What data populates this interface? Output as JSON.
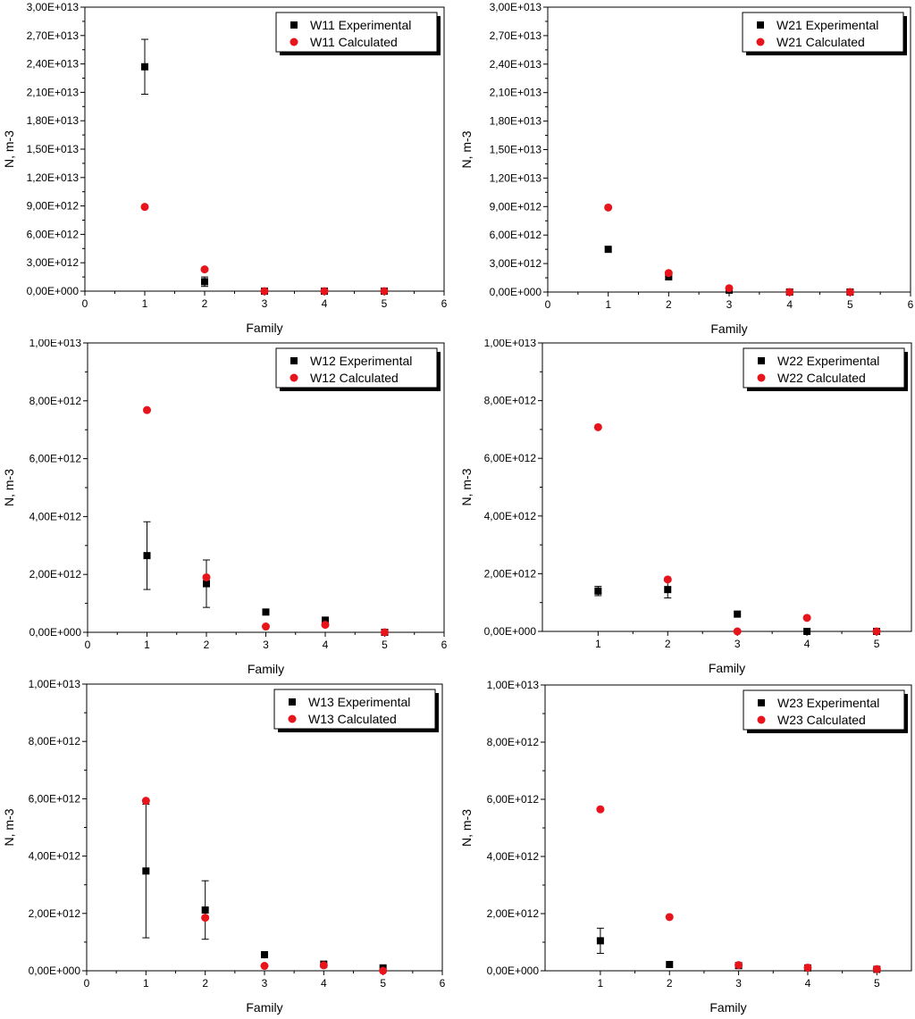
{
  "figure": {
    "description_color_experimental": "#000000",
    "description_color_calculated": "#e8141b"
  },
  "chart_data": [
    {
      "type": "scatter",
      "title": "",
      "xlabel": "Family",
      "ylabel": "N, m-3",
      "xlim": [
        0,
        6
      ],
      "ylim": [
        0,
        30000000000000.0
      ],
      "xticks": [
        0,
        1,
        2,
        3,
        4,
        5,
        6
      ],
      "yticks": [
        0,
        3000000000000.0,
        6000000000000.0,
        9000000000000.0,
        12000000000000.0,
        15000000000000.0,
        18000000000000.0,
        21000000000000.0,
        24000000000000.0,
        27000000000000.0,
        30000000000000.0
      ],
      "ytick_labels": [
        "0,00E+000",
        "3,00E+012",
        "6,00E+012",
        "9,00E+012",
        "1,20E+013",
        "1,50E+013",
        "1,80E+013",
        "2,10E+013",
        "2,40E+013",
        "2,70E+013",
        "3,00E+013"
      ],
      "legend_position": "top-right",
      "series": [
        {
          "name": "W11 Experimental",
          "marker": "square",
          "color": "#000000",
          "x": [
            1,
            2,
            3,
            4,
            5
          ],
          "y": [
            23700000000000.0,
            1000000000000.0,
            0,
            0,
            0
          ],
          "err": [
            2900000000000.0,
            500000000000.0,
            0,
            0,
            0
          ]
        },
        {
          "name": "W11 Calculated",
          "marker": "circle",
          "color": "#e8141b",
          "x": [
            1,
            2,
            3,
            4,
            5
          ],
          "y": [
            8900000000000.0,
            2300000000000.0,
            0,
            0,
            0
          ]
        }
      ]
    },
    {
      "type": "scatter",
      "title": "",
      "xlabel": "Family",
      "ylabel": "N, m-3",
      "xlim": [
        0,
        6
      ],
      "ylim": [
        0,
        30000000000000.0
      ],
      "xticks": [
        0,
        1,
        2,
        3,
        4,
        5,
        6
      ],
      "yticks": [
        0,
        3000000000000.0,
        6000000000000.0,
        9000000000000.0,
        12000000000000.0,
        15000000000000.0,
        18000000000000.0,
        21000000000000.0,
        24000000000000.0,
        27000000000000.0,
        30000000000000.0
      ],
      "ytick_labels": [
        "0,00E+000",
        "3,00E+012",
        "6,00E+012",
        "9,00E+012",
        "1,20E+013",
        "1,50E+013",
        "1,80E+013",
        "2,10E+013",
        "2,40E+013",
        "2,70E+013",
        "3,00E+013"
      ],
      "legend_position": "top-right",
      "series": [
        {
          "name": "W21 Experimental",
          "marker": "square",
          "color": "#000000",
          "x": [
            1,
            2,
            3,
            4,
            5
          ],
          "y": [
            4500000000000.0,
            1600000000000.0,
            200000000000.0,
            0,
            0
          ],
          "err": [
            0,
            0,
            0,
            0,
            0
          ]
        },
        {
          "name": "W21 Calculated",
          "marker": "circle",
          "color": "#e8141b",
          "x": [
            1,
            2,
            3,
            4,
            5
          ],
          "y": [
            8900000000000.0,
            2000000000000.0,
            400000000000.0,
            0,
            0
          ]
        }
      ]
    },
    {
      "type": "scatter",
      "title": "",
      "xlabel": "Family",
      "ylabel": "N, m-3",
      "xlim": [
        0,
        6
      ],
      "ylim": [
        0,
        10000000000000.0
      ],
      "xticks": [
        0,
        1,
        2,
        3,
        4,
        5,
        6
      ],
      "yticks": [
        0,
        2000000000000.0,
        4000000000000.0,
        6000000000000.0,
        8000000000000.0,
        10000000000000.0
      ],
      "ytick_labels": [
        "0,00E+000",
        "2,00E+012",
        "4,00E+012",
        "6,00E+012",
        "8,00E+012",
        "1,00E+013"
      ],
      "legend_position": "top-right",
      "series": [
        {
          "name": "W12 Experimental",
          "marker": "square",
          "color": "#000000",
          "x": [
            1,
            2,
            3,
            4,
            5
          ],
          "y": [
            2650000000000.0,
            1680000000000.0,
            700000000000.0,
            420000000000.0,
            0
          ],
          "err": [
            1170000000000.0,
            820000000000.0,
            0,
            0,
            0
          ]
        },
        {
          "name": "W12 Calculated",
          "marker": "circle",
          "color": "#e8141b",
          "x": [
            1,
            2,
            3,
            4,
            5
          ],
          "y": [
            7680000000000.0,
            1900000000000.0,
            200000000000.0,
            260000000000.0,
            0
          ]
        }
      ]
    },
    {
      "type": "scatter",
      "title": "",
      "xlabel": "Family",
      "ylabel": "N, m-3",
      "xlim": [
        0.2,
        5.5
      ],
      "ylim": [
        0,
        10000000000000.0
      ],
      "xticks": [
        1,
        2,
        3,
        4,
        5
      ],
      "yticks": [
        0,
        2000000000000.0,
        4000000000000.0,
        6000000000000.0,
        8000000000000.0,
        10000000000000.0
      ],
      "ytick_labels": [
        "0,00E+000",
        "2,00E+012",
        "4,00E+012",
        "6,00E+012",
        "8,00E+012",
        "1,00E+013"
      ],
      "legend_position": "top-right",
      "series": [
        {
          "name": "W22 Experimental",
          "marker": "square",
          "color": "#000000",
          "x": [
            1,
            2,
            3,
            4,
            5
          ],
          "y": [
            1400000000000.0,
            1450000000000.0,
            600000000000.0,
            0,
            0
          ],
          "err": [
            160000000000.0,
            290000000000.0,
            0,
            0,
            0
          ]
        },
        {
          "name": "W22 Calculated",
          "marker": "circle",
          "color": "#e8141b",
          "x": [
            1,
            2,
            3,
            4,
            5
          ],
          "y": [
            7080000000000.0,
            1800000000000.0,
            0,
            470000000000.0,
            0
          ]
        }
      ]
    },
    {
      "type": "scatter",
      "title": "",
      "xlabel": "Family",
      "ylabel": "N, m-3",
      "xlim": [
        0,
        6
      ],
      "ylim": [
        0,
        10000000000000.0
      ],
      "xticks": [
        0,
        1,
        2,
        3,
        4,
        5,
        6
      ],
      "yticks": [
        0,
        2000000000000.0,
        4000000000000.0,
        6000000000000.0,
        8000000000000.0,
        10000000000000.0
      ],
      "ytick_labels": [
        "0,00E+000",
        "2,00E+012",
        "4,00E+012",
        "6,00E+012",
        "8,00E+012",
        "1,00E+013"
      ],
      "legend_position": "top-right",
      "series": [
        {
          "name": "W13 Experimental",
          "marker": "square",
          "color": "#000000",
          "x": [
            1,
            2,
            3,
            4,
            5
          ],
          "y": [
            3480000000000.0,
            2120000000000.0,
            560000000000.0,
            230000000000.0,
            100000000000.0
          ],
          "err": [
            2330000000000.0,
            1020000000000.0,
            0,
            0,
            0
          ]
        },
        {
          "name": "W13 Calculated",
          "marker": "circle",
          "color": "#e8141b",
          "x": [
            1,
            2,
            3,
            4,
            5
          ],
          "y": [
            5930000000000.0,
            1850000000000.0,
            170000000000.0,
            190000000000.0,
            0
          ]
        }
      ]
    },
    {
      "type": "scatter",
      "title": "",
      "xlabel": "Family",
      "ylabel": "N, m-3",
      "xlim": [
        0.2,
        5.5
      ],
      "ylim": [
        0,
        10000000000000.0
      ],
      "xticks": [
        1,
        2,
        3,
        4,
        5
      ],
      "yticks": [
        0,
        2000000000000.0,
        4000000000000.0,
        6000000000000.0,
        8000000000000.0,
        10000000000000.0
      ],
      "ytick_labels": [
        "0,00E+000",
        "2,00E+012",
        "4,00E+012",
        "6,00E+012",
        "8,00E+012",
        "1,00E+013"
      ],
      "legend_position": "top-right",
      "series": [
        {
          "name": "W23 Experimental",
          "marker": "square",
          "color": "#000000",
          "x": [
            1,
            2,
            3,
            4,
            5
          ],
          "y": [
            1050000000000.0,
            220000000000.0,
            180000000000.0,
            100000000000.0,
            50000000000.0
          ],
          "err": [
            440000000000.0,
            0,
            0,
            0,
            0
          ]
        },
        {
          "name": "W23 Calculated",
          "marker": "circle",
          "color": "#e8141b",
          "x": [
            1,
            2,
            3,
            4,
            5
          ],
          "y": [
            5650000000000.0,
            1880000000000.0,
            200000000000.0,
            110000000000.0,
            60000000000.0
          ]
        }
      ]
    }
  ]
}
